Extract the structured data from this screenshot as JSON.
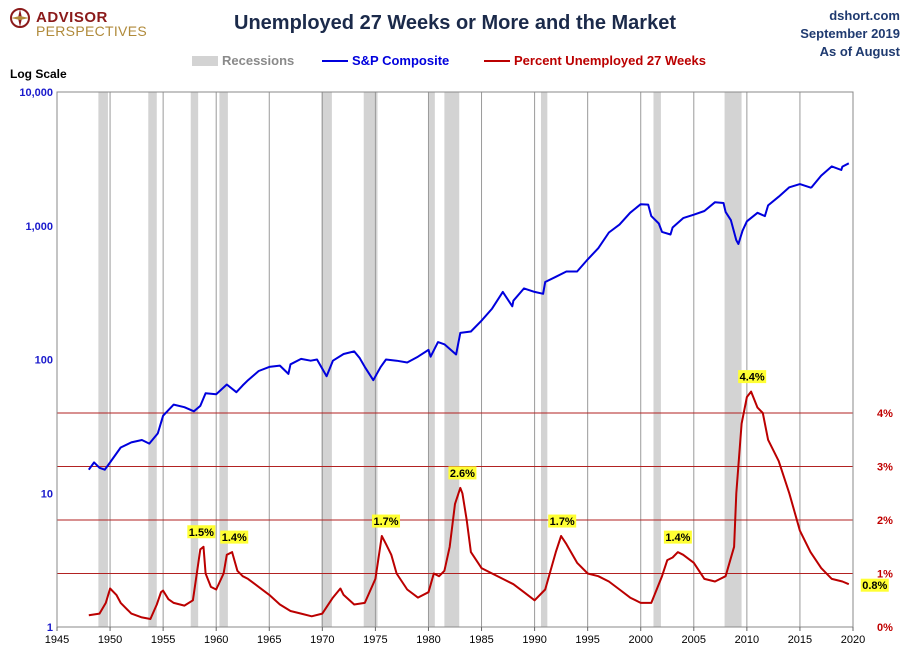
{
  "header": {
    "logo_line1": "ADVISOR",
    "logo_line2": "PERSPECTIVES",
    "title": "Unemployed 27 Weeks or More and the Market",
    "source_line1": "dshort.com",
    "source_line2": "September 2019",
    "source_line3": "As of August",
    "log_scale_label": "Log Scale"
  },
  "legend": {
    "recessions": "Recessions",
    "sp": "S&P Composite",
    "unemp": "Percent Unemployed 27 Weeks"
  },
  "colors": {
    "sp": "#0000dd",
    "unemp": "#bb0000",
    "recession": "#d3d3d3",
    "ref_line": "#b22222",
    "annotation": "#ffff33"
  },
  "chart_data": {
    "type": "line",
    "title": "Unemployed 27 Weeks or More and the Market",
    "x_axis": {
      "min": 1945,
      "max": 2020,
      "ticks": [
        1945,
        1950,
        1955,
        1960,
        1965,
        1970,
        1975,
        1980,
        1985,
        1990,
        1995,
        2000,
        2005,
        2010,
        2015,
        2020
      ]
    },
    "y_left": {
      "scale": "log",
      "min": 1,
      "max": 10000,
      "ticks": [
        1,
        10,
        100,
        1000,
        10000
      ],
      "tick_labels": [
        "1",
        "10",
        "100",
        "1,000",
        "10,000"
      ]
    },
    "y_right": {
      "min": 0,
      "max": 10,
      "ticks": [
        0,
        1,
        2,
        3,
        4
      ],
      "tick_labels": [
        "0%",
        "1%",
        "2%",
        "3%",
        "4%"
      ]
    },
    "reference_lines_percent": [
      1,
      2,
      3,
      4
    ],
    "recessions": [
      [
        1948.9,
        1949.8
      ],
      [
        1953.6,
        1954.4
      ],
      [
        1957.6,
        1958.3
      ],
      [
        1960.3,
        1961.1
      ],
      [
        1969.9,
        1970.9
      ],
      [
        1973.9,
        1975.2
      ],
      [
        1980.0,
        1980.6
      ],
      [
        1981.5,
        1982.9
      ],
      [
        1990.6,
        1991.2
      ],
      [
        2001.2,
        2001.9
      ],
      [
        2007.9,
        2009.5
      ]
    ],
    "series": [
      {
        "name": "S&P Composite",
        "axis": "left",
        "x": [
          1948,
          1948.5,
          1949,
          1949.5,
          1950,
          1951,
          1952,
          1953,
          1953.7,
          1954.5,
          1955,
          1956,
          1957,
          1957.9,
          1958.5,
          1959,
          1960,
          1961,
          1961.9,
          1962.5,
          1963,
          1964,
          1965,
          1966,
          1966.8,
          1967,
          1968,
          1968.9,
          1969.5,
          1970.4,
          1971,
          1972,
          1973,
          1973.5,
          1974,
          1974.8,
          1975.5,
          1976,
          1977,
          1978,
          1979,
          1980,
          1980.2,
          1980.9,
          1981.5,
          1982.6,
          1983,
          1984,
          1985,
          1986,
          1987,
          1987.9,
          1988,
          1989,
          1990,
          1990.8,
          1991,
          1992,
          1993,
          1994,
          1995,
          1996,
          1997,
          1998,
          1999,
          2000,
          2000.7,
          2001,
          2001.7,
          2002,
          2002.8,
          2003,
          2004,
          2005,
          2006,
          2007,
          2007.8,
          2008,
          2008.5,
          2009,
          2009.2,
          2009.6,
          2010,
          2011,
          2011.7,
          2012,
          2013,
          2014,
          2015,
          2016,
          2016.1,
          2017,
          2018,
          2018.9,
          2019,
          2019.6
        ],
        "y": [
          15,
          17,
          15.5,
          15,
          17,
          22,
          24,
          25,
          23.5,
          28,
          38,
          46,
          44,
          41,
          45,
          56,
          55,
          65,
          57,
          64,
          70,
          82,
          88,
          90,
          78,
          92,
          101,
          98,
          100,
          75,
          98,
          110,
          115,
          103,
          88,
          70,
          88,
          100,
          98,
          95,
          105,
          118,
          105,
          135,
          130,
          109,
          158,
          162,
          195,
          240,
          320,
          250,
          275,
          340,
          320,
          310,
          380,
          415,
          455,
          455,
          560,
          680,
          890,
          1020,
          1250,
          1450,
          1440,
          1180,
          1040,
          900,
          860,
          970,
          1140,
          1210,
          1290,
          1500,
          1480,
          1270,
          1100,
          780,
          730,
          920,
          1080,
          1250,
          1180,
          1420,
          1650,
          1940,
          2050,
          1930,
          1940,
          2370,
          2780,
          2610,
          2770,
          2930
        ]
      },
      {
        "name": "Percent Unemployed 27 Weeks",
        "axis": "right",
        "x": [
          1948,
          1949,
          1949.6,
          1950,
          1950.6,
          1951,
          1952,
          1953,
          1953.8,
          1954.4,
          1954.8,
          1955,
          1955.5,
          1956,
          1957,
          1957.8,
          1958.5,
          1958.8,
          1959,
          1959.5,
          1960,
          1960.7,
          1961,
          1961.5,
          1962,
          1962.5,
          1963,
          1964,
          1965,
          1966,
          1967,
          1968,
          1969,
          1970,
          1970.5,
          1971,
          1971.7,
          1972,
          1973,
          1974,
          1975,
          1975.6,
          1976,
          1976.5,
          1977,
          1978,
          1979,
          1980,
          1980.5,
          1981,
          1981.5,
          1982,
          1982.5,
          1983,
          1983.2,
          1983.6,
          1984,
          1985,
          1986,
          1987,
          1988,
          1989,
          1990,
          1991,
          1992,
          1992.5,
          1993,
          1994,
          1995,
          1996,
          1997,
          1998,
          1999,
          2000,
          2001,
          2002,
          2002.5,
          2003,
          2003.5,
          2004,
          2005,
          2006,
          2007,
          2008,
          2008.8,
          2009,
          2009.5,
          2010,
          2010.4,
          2011,
          2011.5,
          2012,
          2013,
          2014,
          2015,
          2016,
          2017,
          2018,
          2019,
          2019.6
        ],
        "y": [
          0.22,
          0.25,
          0.45,
          0.72,
          0.6,
          0.45,
          0.25,
          0.18,
          0.15,
          0.42,
          0.65,
          0.68,
          0.52,
          0.45,
          0.4,
          0.5,
          1.45,
          1.5,
          1.0,
          0.75,
          0.7,
          1.0,
          1.35,
          1.4,
          1.05,
          0.95,
          0.9,
          0.75,
          0.6,
          0.42,
          0.3,
          0.25,
          0.2,
          0.25,
          0.4,
          0.55,
          0.72,
          0.6,
          0.42,
          0.45,
          0.9,
          1.7,
          1.55,
          1.35,
          1.0,
          0.7,
          0.55,
          0.65,
          1.0,
          0.95,
          1.05,
          1.5,
          2.3,
          2.6,
          2.5,
          2.0,
          1.4,
          1.1,
          1.0,
          0.9,
          0.8,
          0.65,
          0.5,
          0.7,
          1.4,
          1.7,
          1.55,
          1.2,
          1.0,
          0.95,
          0.85,
          0.7,
          0.55,
          0.45,
          0.45,
          0.95,
          1.25,
          1.3,
          1.4,
          1.35,
          1.2,
          0.9,
          0.85,
          0.95,
          1.5,
          2.5,
          3.8,
          4.3,
          4.4,
          4.1,
          4.0,
          3.5,
          3.1,
          2.5,
          1.8,
          1.4,
          1.1,
          0.9,
          0.85,
          0.8
        ]
      }
    ],
    "annotations": [
      {
        "x": 1958.6,
        "value": 1.5,
        "label": "1.5%"
      },
      {
        "x": 1961.7,
        "value": 1.4,
        "label": "1.4%"
      },
      {
        "x": 1976.0,
        "value": 1.7,
        "label": "1.7%"
      },
      {
        "x": 1983.2,
        "value": 2.6,
        "label": "2.6%"
      },
      {
        "x": 1992.6,
        "value": 1.7,
        "label": "1.7%"
      },
      {
        "x": 2003.5,
        "value": 1.4,
        "label": "1.4%"
      },
      {
        "x": 2010.5,
        "value": 4.4,
        "label": "4.4%"
      },
      {
        "x": 2019.6,
        "value": 0.8,
        "label": "0.8%"
      }
    ]
  }
}
